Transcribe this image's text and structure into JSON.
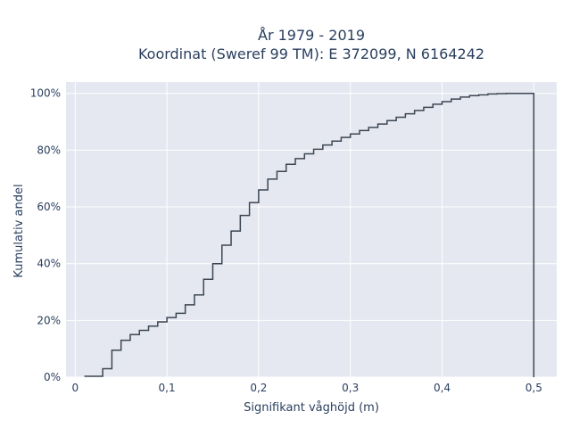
{
  "chart_data": {
    "type": "line",
    "line_shape": "step",
    "title_line1": "År 1979 - 2019",
    "title_line2": "Koordinat (Sweref 99 TM): E 372099, N 6164242",
    "xlabel": "Signifikant våghöjd (m)",
    "ylabel": "Kumulativ andel",
    "xlim": [
      -0.01,
      0.525
    ],
    "ylim": [
      0,
      1.04
    ],
    "x_ticks": [
      0,
      0.1,
      0.2,
      0.3,
      0.4,
      0.5
    ],
    "x_tick_labels": [
      "0",
      "0,1",
      "0,2",
      "0,3",
      "0,4",
      "0,5"
    ],
    "y_ticks": [
      0,
      0.2,
      0.4,
      0.6,
      0.8,
      1.0
    ],
    "y_tick_labels": [
      "0%",
      "20%",
      "40%",
      "60%",
      "80%",
      "100%"
    ],
    "grid": true,
    "colors": {
      "background": "#e5e8f0",
      "grid": "#ffffff",
      "line": "#3d4654"
    },
    "series": [
      {
        "x": [
          0.02,
          0.03,
          0.04,
          0.05,
          0.06,
          0.07,
          0.08,
          0.09,
          0.1,
          0.11,
          0.12,
          0.13,
          0.14,
          0.15,
          0.16,
          0.17,
          0.18,
          0.19,
          0.2,
          0.21,
          0.22,
          0.23,
          0.24,
          0.25,
          0.26,
          0.27,
          0.28,
          0.29,
          0.3,
          0.31,
          0.32,
          0.33,
          0.34,
          0.35,
          0.36,
          0.37,
          0.38,
          0.39,
          0.4,
          0.41,
          0.42,
          0.43,
          0.44,
          0.45,
          0.46,
          0.47,
          0.48,
          0.49,
          0.5,
          0.5
        ],
        "y": [
          0.003,
          0.03,
          0.095,
          0.13,
          0.15,
          0.165,
          0.18,
          0.195,
          0.21,
          0.225,
          0.255,
          0.29,
          0.345,
          0.4,
          0.465,
          0.515,
          0.57,
          0.615,
          0.66,
          0.698,
          0.725,
          0.75,
          0.77,
          0.787,
          0.803,
          0.818,
          0.832,
          0.845,
          0.857,
          0.869,
          0.88,
          0.892,
          0.904,
          0.916,
          0.928,
          0.94,
          0.951,
          0.962,
          0.971,
          0.98,
          0.987,
          0.992,
          0.995,
          0.998,
          0.999,
          1.0,
          1.0,
          1.0,
          1.0,
          0.0
        ]
      }
    ]
  }
}
